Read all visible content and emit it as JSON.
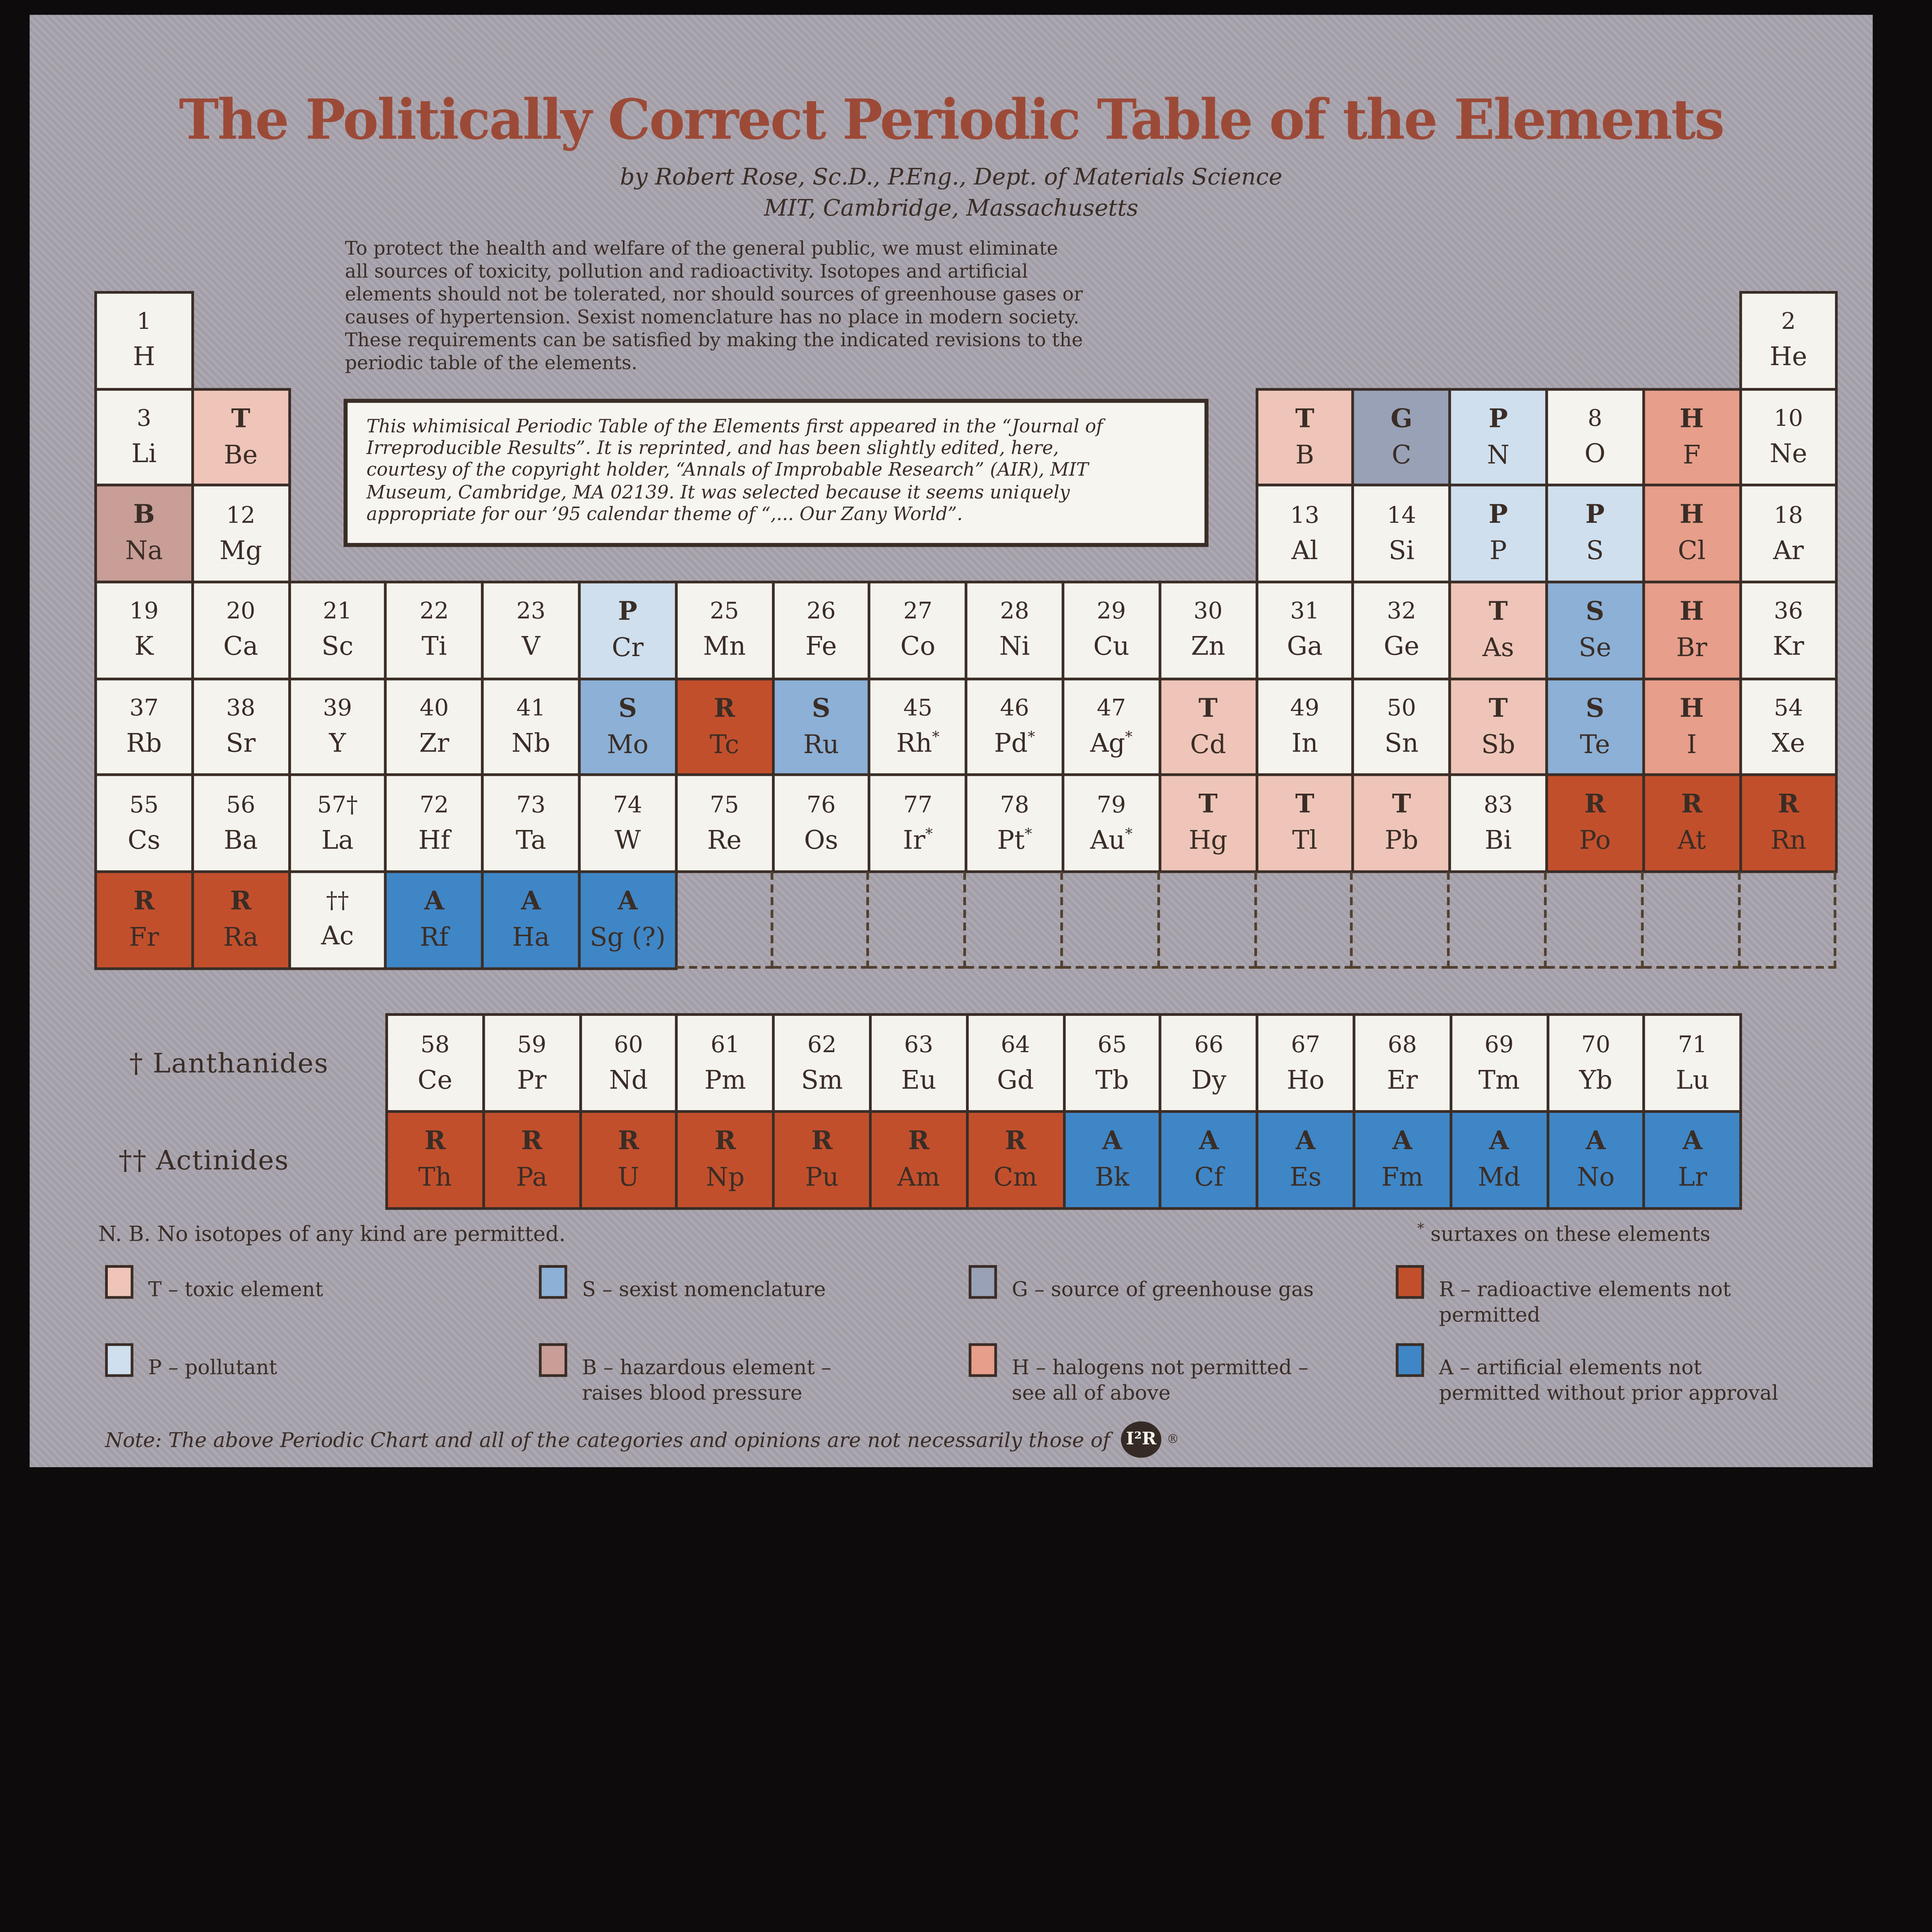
{
  "poster": {
    "title": "The Politically Correct Periodic Table of the Elements",
    "byline_line1": "by Robert Rose, Sc.D., P.Eng., Dept. of Materials Science",
    "byline_line2": "MIT, Cambridge, Massachusetts",
    "intro": "To protect the health and welfare of the general public, we must eliminate\nall sources of toxicity, pollution and radioactivity. Isotopes and artificial\nelements should not be tolerated, nor should sources of greenhouse gases or\ncauses of hypertension. Sexist nomenclature has no place in modern society.\nThese requirements can be satisfied by making the indicated revisions to the\nperiodic table of the elements.",
    "reprint_note": "This whimisical Periodic Table of the Elements first appeared in the “Journal of\nIrreproducible Results”. It is reprinted, and has been slightly edited, here,\ncourtesy of the copyright holder, “Annals of Improbable Research” (AIR), MIT\nMuseum, Cambridge, MA 02139. It was selected because it seems uniquely\nappropriate for our ’95 calendar theme of “,... Our Zany World”.",
    "lanthanides_label": "† Lanthanides",
    "actinides_label": "†† Actinides",
    "nb_note": "N. B. No isotopes of any kind are permitted.",
    "surtax_marker": "*",
    "surtax_note": "surtaxes on these elements",
    "footer_note": "Note: The above Periodic Chart and all of the categories and opinions are not necessarily those of",
    "footer_logo": "I²R",
    "footer_reg": "®"
  },
  "colors": {
    "frame": "#0d0b0c",
    "background": "#a8a3ad",
    "ink": "#3a2d26",
    "title": "#9c4a38",
    "cell_default": "#f5f3ee",
    "categories": {
      "T": "#eec5b8",
      "P": "#cfdfee",
      "S": "#8cb0d6",
      "G": "#99a1b6",
      "B": "#c89e97",
      "H": "#e79e8a",
      "R": "#c24f2c",
      "A": "#3f86c6"
    }
  },
  "legend": [
    {
      "code": "T",
      "label": "T – toxic element"
    },
    {
      "code": "S",
      "label": "S – sexist nomenclature"
    },
    {
      "code": "G",
      "label": "G – source of greenhouse gas"
    },
    {
      "code": "R",
      "label": "R – radioactive elements not\npermitted"
    },
    {
      "code": "P",
      "label": "P – pollutant"
    },
    {
      "code": "B",
      "label": "B – hazardous element –\nraises blood pressure"
    },
    {
      "code": "H",
      "label": "H – halogens not permitted –\nsee all of above"
    },
    {
      "code": "A",
      "label": "A – artificial elements not\npermitted without prior approval"
    }
  ],
  "table": {
    "cells": [
      {
        "r": 1,
        "c": 1,
        "t": "1",
        "s": "H",
        "k": ""
      },
      {
        "r": 1,
        "c": 18,
        "t": "2",
        "s": "He",
        "k": ""
      },
      {
        "r": 2,
        "c": 1,
        "t": "3",
        "s": "Li",
        "k": ""
      },
      {
        "r": 2,
        "c": 2,
        "t": "T",
        "s": "Be",
        "k": "T"
      },
      {
        "r": 2,
        "c": 13,
        "t": "T",
        "s": "B",
        "k": "T"
      },
      {
        "r": 2,
        "c": 14,
        "t": "G",
        "s": "C",
        "k": "G"
      },
      {
        "r": 2,
        "c": 15,
        "t": "P",
        "s": "N",
        "k": "P"
      },
      {
        "r": 2,
        "c": 16,
        "t": "8",
        "s": "O",
        "k": ""
      },
      {
        "r": 2,
        "c": 17,
        "t": "H",
        "s": "F",
        "k": "H"
      },
      {
        "r": 2,
        "c": 18,
        "t": "10",
        "s": "Ne",
        "k": ""
      },
      {
        "r": 3,
        "c": 1,
        "t": "B",
        "s": "Na",
        "k": "B"
      },
      {
        "r": 3,
        "c": 2,
        "t": "12",
        "s": "Mg",
        "k": ""
      },
      {
        "r": 3,
        "c": 13,
        "t": "13",
        "s": "Al",
        "k": ""
      },
      {
        "r": 3,
        "c": 14,
        "t": "14",
        "s": "Si",
        "k": ""
      },
      {
        "r": 3,
        "c": 15,
        "t": "P",
        "s": "P",
        "k": "P"
      },
      {
        "r": 3,
        "c": 16,
        "t": "P",
        "s": "S",
        "k": "P"
      },
      {
        "r": 3,
        "c": 17,
        "t": "H",
        "s": "Cl",
        "k": "H"
      },
      {
        "r": 3,
        "c": 18,
        "t": "18",
        "s": "Ar",
        "k": ""
      },
      {
        "r": 4,
        "c": 1,
        "t": "19",
        "s": "K",
        "k": ""
      },
      {
        "r": 4,
        "c": 2,
        "t": "20",
        "s": "Ca",
        "k": ""
      },
      {
        "r": 4,
        "c": 3,
        "t": "21",
        "s": "Sc",
        "k": ""
      },
      {
        "r": 4,
        "c": 4,
        "t": "22",
        "s": "Ti",
        "k": ""
      },
      {
        "r": 4,
        "c": 5,
        "t": "23",
        "s": "V",
        "k": ""
      },
      {
        "r": 4,
        "c": 6,
        "t": "P",
        "s": "Cr",
        "k": "P"
      },
      {
        "r": 4,
        "c": 7,
        "t": "25",
        "s": "Mn",
        "k": ""
      },
      {
        "r": 4,
        "c": 8,
        "t": "26",
        "s": "Fe",
        "k": ""
      },
      {
        "r": 4,
        "c": 9,
        "t": "27",
        "s": "Co",
        "k": ""
      },
      {
        "r": 4,
        "c": 10,
        "t": "28",
        "s": "Ni",
        "k": ""
      },
      {
        "r": 4,
        "c": 11,
        "t": "29",
        "s": "Cu",
        "k": ""
      },
      {
        "r": 4,
        "c": 12,
        "t": "30",
        "s": "Zn",
        "k": ""
      },
      {
        "r": 4,
        "c": 13,
        "t": "31",
        "s": "Ga",
        "k": ""
      },
      {
        "r": 4,
        "c": 14,
        "t": "32",
        "s": "Ge",
        "k": ""
      },
      {
        "r": 4,
        "c": 15,
        "t": "T",
        "s": "As",
        "k": "T"
      },
      {
        "r": 4,
        "c": 16,
        "t": "S",
        "s": "Se",
        "k": "S"
      },
      {
        "r": 4,
        "c": 17,
        "t": "H",
        "s": "Br",
        "k": "H"
      },
      {
        "r": 4,
        "c": 18,
        "t": "36",
        "s": "Kr",
        "k": ""
      },
      {
        "r": 5,
        "c": 1,
        "t": "37",
        "s": "Rb",
        "k": ""
      },
      {
        "r": 5,
        "c": 2,
        "t": "38",
        "s": "Sr",
        "k": ""
      },
      {
        "r": 5,
        "c": 3,
        "t": "39",
        "s": "Y",
        "k": ""
      },
      {
        "r": 5,
        "c": 4,
        "t": "40",
        "s": "Zr",
        "k": ""
      },
      {
        "r": 5,
        "c": 5,
        "t": "41",
        "s": "Nb",
        "k": ""
      },
      {
        "r": 5,
        "c": 6,
        "t": "S",
        "s": "Mo",
        "k": "S"
      },
      {
        "r": 5,
        "c": 7,
        "t": "R",
        "s": "Tc",
        "k": "R"
      },
      {
        "r": 5,
        "c": 8,
        "t": "S",
        "s": "Ru",
        "k": "S"
      },
      {
        "r": 5,
        "c": 9,
        "t": "45",
        "s": "Rh*",
        "k": ""
      },
      {
        "r": 5,
        "c": 10,
        "t": "46",
        "s": "Pd*",
        "k": ""
      },
      {
        "r": 5,
        "c": 11,
        "t": "47",
        "s": "Ag*",
        "k": ""
      },
      {
        "r": 5,
        "c": 12,
        "t": "T",
        "s": "Cd",
        "k": "T"
      },
      {
        "r": 5,
        "c": 13,
        "t": "49",
        "s": "In",
        "k": ""
      },
      {
        "r": 5,
        "c": 14,
        "t": "50",
        "s": "Sn",
        "k": ""
      },
      {
        "r": 5,
        "c": 15,
        "t": "T",
        "s": "Sb",
        "k": "T"
      },
      {
        "r": 5,
        "c": 16,
        "t": "S",
        "s": "Te",
        "k": "S"
      },
      {
        "r": 5,
        "c": 17,
        "t": "H",
        "s": "I",
        "k": "H"
      },
      {
        "r": 5,
        "c": 18,
        "t": "54",
        "s": "Xe",
        "k": ""
      },
      {
        "r": 6,
        "c": 1,
        "t": "55",
        "s": "Cs",
        "k": ""
      },
      {
        "r": 6,
        "c": 2,
        "t": "56",
        "s": "Ba",
        "k": ""
      },
      {
        "r": 6,
        "c": 3,
        "t": "57†",
        "s": "La",
        "k": ""
      },
      {
        "r": 6,
        "c": 4,
        "t": "72",
        "s": "Hf",
        "k": ""
      },
      {
        "r": 6,
        "c": 5,
        "t": "73",
        "s": "Ta",
        "k": ""
      },
      {
        "r": 6,
        "c": 6,
        "t": "74",
        "s": "W",
        "k": ""
      },
      {
        "r": 6,
        "c": 7,
        "t": "75",
        "s": "Re",
        "k": ""
      },
      {
        "r": 6,
        "c": 8,
        "t": "76",
        "s": "Os",
        "k": ""
      },
      {
        "r": 6,
        "c": 9,
        "t": "77",
        "s": "Ir*",
        "k": ""
      },
      {
        "r": 6,
        "c": 10,
        "t": "78",
        "s": "Pt*",
        "k": ""
      },
      {
        "r": 6,
        "c": 11,
        "t": "79",
        "s": "Au*",
        "k": ""
      },
      {
        "r": 6,
        "c": 12,
        "t": "T",
        "s": "Hg",
        "k": "T"
      },
      {
        "r": 6,
        "c": 13,
        "t": "T",
        "s": "Tl",
        "k": "T"
      },
      {
        "r": 6,
        "c": 14,
        "t": "T",
        "s": "Pb",
        "k": "T"
      },
      {
        "r": 6,
        "c": 15,
        "t": "83",
        "s": "Bi",
        "k": ""
      },
      {
        "r": 6,
        "c": 16,
        "t": "R",
        "s": "Po",
        "k": "R"
      },
      {
        "r": 6,
        "c": 17,
        "t": "R",
        "s": "At",
        "k": "R"
      },
      {
        "r": 6,
        "c": 18,
        "t": "R",
        "s": "Rn",
        "k": "R"
      },
      {
        "r": 7,
        "c": 1,
        "t": "R",
        "s": "Fr",
        "k": "R"
      },
      {
        "r": 7,
        "c": 2,
        "t": "R",
        "s": "Ra",
        "k": "R"
      },
      {
        "r": 7,
        "c": 3,
        "t": "††",
        "s": "Ac",
        "k": ""
      },
      {
        "r": 7,
        "c": 4,
        "t": "A",
        "s": "Rf",
        "k": "A"
      },
      {
        "r": 7,
        "c": 5,
        "t": "A",
        "s": "Ha",
        "k": "A"
      },
      {
        "r": 7,
        "c": 6,
        "t": "A",
        "s": "Sg (?)",
        "k": "A"
      }
    ],
    "dashed_cols": [
      7,
      8,
      9,
      10,
      11,
      12,
      13,
      14,
      15,
      16,
      17,
      18
    ],
    "lanthanides": [
      {
        "t": "58",
        "s": "Ce",
        "k": ""
      },
      {
        "t": "59",
        "s": "Pr",
        "k": ""
      },
      {
        "t": "60",
        "s": "Nd",
        "k": ""
      },
      {
        "t": "61",
        "s": "Pm",
        "k": ""
      },
      {
        "t": "62",
        "s": "Sm",
        "k": ""
      },
      {
        "t": "63",
        "s": "Eu",
        "k": ""
      },
      {
        "t": "64",
        "s": "Gd",
        "k": ""
      },
      {
        "t": "65",
        "s": "Tb",
        "k": ""
      },
      {
        "t": "66",
        "s": "Dy",
        "k": ""
      },
      {
        "t": "67",
        "s": "Ho",
        "k": ""
      },
      {
        "t": "68",
        "s": "Er",
        "k": ""
      },
      {
        "t": "69",
        "s": "Tm",
        "k": ""
      },
      {
        "t": "70",
        "s": "Yb",
        "k": ""
      },
      {
        "t": "71",
        "s": "Lu",
        "k": ""
      }
    ],
    "actinides": [
      {
        "t": "R",
        "s": "Th",
        "k": "R"
      },
      {
        "t": "R",
        "s": "Pa",
        "k": "R"
      },
      {
        "t": "R",
        "s": "U",
        "k": "R"
      },
      {
        "t": "R",
        "s": "Np",
        "k": "R"
      },
      {
        "t": "R",
        "s": "Pu",
        "k": "R"
      },
      {
        "t": "R",
        "s": "Am",
        "k": "R"
      },
      {
        "t": "R",
        "s": "Cm",
        "k": "R"
      },
      {
        "t": "A",
        "s": "Bk",
        "k": "A"
      },
      {
        "t": "A",
        "s": "Cf",
        "k": "A"
      },
      {
        "t": "A",
        "s": "Es",
        "k": "A"
      },
      {
        "t": "A",
        "s": "Fm",
        "k": "A"
      },
      {
        "t": "A",
        "s": "Md",
        "k": "A"
      },
      {
        "t": "A",
        "s": "No",
        "k": "A"
      },
      {
        "t": "A",
        "s": "Lr",
        "k": "A"
      }
    ]
  }
}
